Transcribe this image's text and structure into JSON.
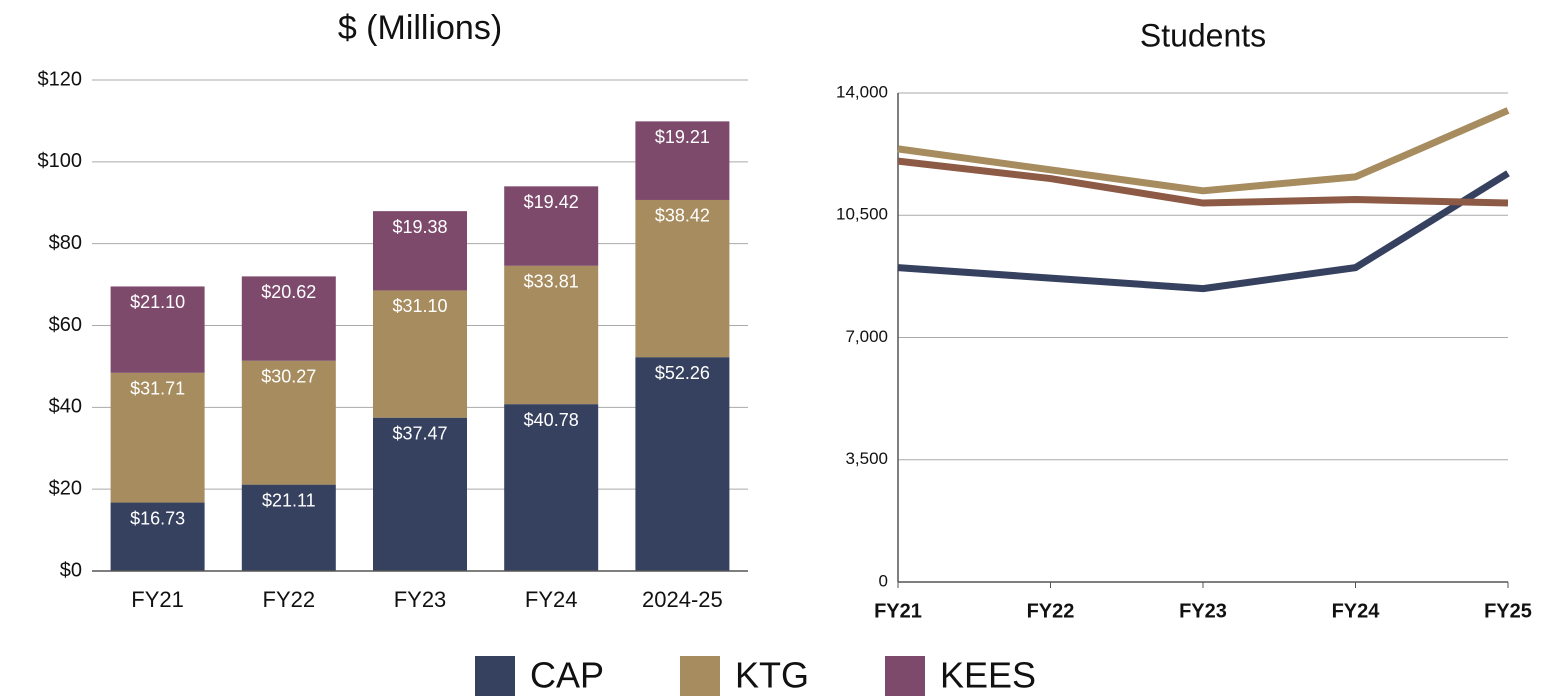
{
  "chart_data": [
    {
      "type": "bar",
      "stacked": true,
      "title": "$ (Millions)",
      "categories": [
        "FY21",
        "FY22",
        "FY23",
        "FY24",
        "2024-25"
      ],
      "series": [
        {
          "name": "CAP",
          "color": "#36415f",
          "values": [
            16.73,
            21.11,
            37.47,
            40.78,
            52.26
          ],
          "value_labels": [
            "$16.73",
            "$21.11",
            "$37.47",
            "$40.78",
            "$52.26"
          ]
        },
        {
          "name": "KTG",
          "color": "#a68c5e",
          "values": [
            31.71,
            30.27,
            31.1,
            33.81,
            38.42
          ],
          "value_labels": [
            "$31.71",
            "$30.27",
            "$31.10",
            "$33.81",
            "$38.42"
          ]
        },
        {
          "name": "KEES",
          "color": "#7d4a6c",
          "values": [
            21.1,
            20.62,
            19.38,
            19.42,
            19.21
          ],
          "value_labels": [
            "$21.10",
            "$20.62",
            "$19.38",
            "$19.42",
            "$19.21"
          ]
        }
      ],
      "ylim": [
        0,
        120
      ],
      "yticks": [
        {
          "value": 0,
          "label": "$0"
        },
        {
          "value": 20,
          "label": "$20"
        },
        {
          "value": 40,
          "label": "$40"
        },
        {
          "value": 60,
          "label": "$60"
        },
        {
          "value": 80,
          "label": "$80"
        },
        {
          "value": 100,
          "label": "$100"
        },
        {
          "value": 120,
          "label": "$120"
        }
      ],
      "grid": true,
      "legend": "bottom"
    },
    {
      "type": "line",
      "title": "Students",
      "categories": [
        "FY21",
        "FY22",
        "FY23",
        "FY24",
        "FY25"
      ],
      "series": [
        {
          "color": "#36415f",
          "values": [
            9000,
            8700,
            8400,
            9000,
            11700
          ]
        },
        {
          "color": "#a68c5e",
          "values": [
            12400,
            11800,
            11200,
            11600,
            13500
          ]
        },
        {
          "color": "#8c5a45",
          "values": [
            12050,
            11550,
            10850,
            10950,
            10850
          ]
        }
      ],
      "ylim": [
        0,
        14000
      ],
      "yticks": [
        0,
        {
          "value": 3500,
          "label": "3,500"
        },
        {
          "value": 7000,
          "label": "7,000"
        },
        {
          "value": 10500,
          "label": "10,500"
        },
        {
          "value": 14000,
          "label": "14,000"
        }
      ],
      "grid": true
    }
  ]
}
